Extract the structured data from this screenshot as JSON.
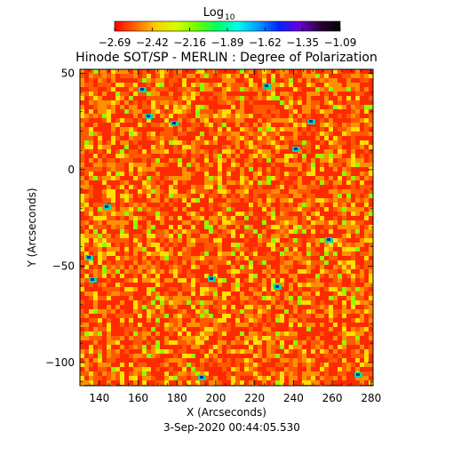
{
  "colorbar": {
    "label": "Log",
    "label_subscript": "10",
    "tick_labels": [
      "-2.69",
      "-2.42",
      "-2.16",
      "-1.89",
      "-1.62",
      "-1.35",
      "-1.09"
    ],
    "gradient_colors": [
      "#ff0000",
      "#ff6600",
      "#ffcc00",
      "#d8ff00",
      "#70ff00",
      "#00ff66",
      "#00ffee",
      "#0099ff",
      "#0022ff",
      "#6a00d8",
      "#2a003a",
      "#000000"
    ]
  },
  "chart_data": {
    "type": "heatmap",
    "title": "Hinode SOT/SP - MERLIN : Degree of Polarization",
    "xlabel": "X (Arcseconds)",
    "ylabel": "Y (Arcseconds)",
    "x_ticks": [
      140,
      160,
      180,
      200,
      220,
      240,
      260,
      280
    ],
    "y_ticks": [
      50,
      0,
      -50,
      -100
    ],
    "xlim": [
      130,
      281
    ],
    "ylim": [
      -112,
      52
    ],
    "value_range": [
      -2.69,
      -1.09
    ],
    "value_scale": "log10",
    "colormap": "red-yellow-green-blue-black",
    "dominant_colors": [
      "#ff2a00",
      "#ff5a00",
      "#ff9000",
      "#ffe000",
      "#8fff00"
    ]
  },
  "footer": {
    "timestamp": "3-Sep-2020 00:44:05.530"
  }
}
